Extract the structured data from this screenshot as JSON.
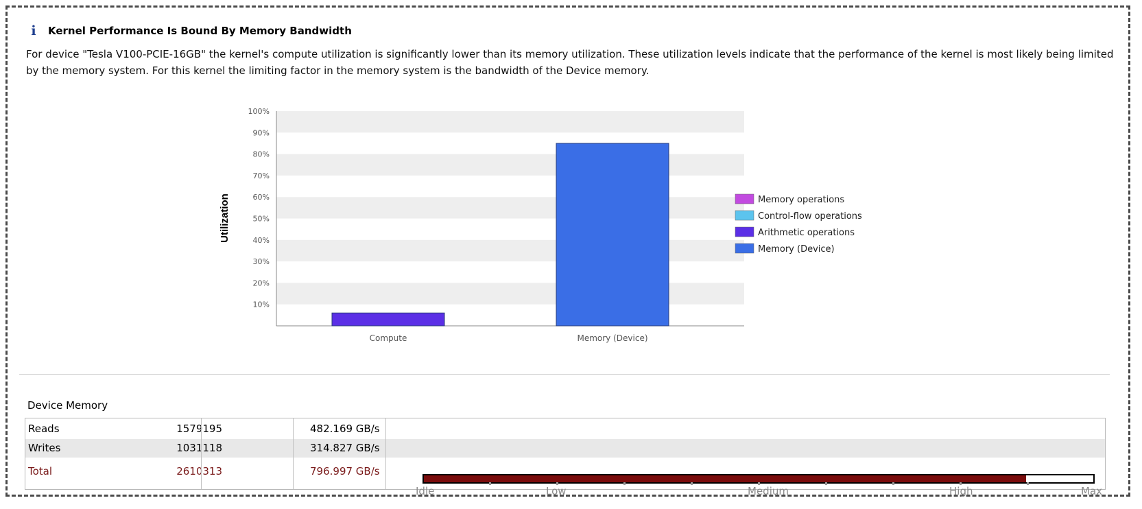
{
  "analysis": {
    "title": "Kernel Performance Is Bound By Memory Bandwidth",
    "description": "For device \"Tesla V100-PCIE-16GB\" the kernel's compute utilization is significantly lower than its memory utilization. These utilization levels indicate that the performance of the kernel is most likely being limited by the memory system. For this kernel the limiting factor in the memory system is the bandwidth of the Device memory."
  },
  "chart_data": {
    "type": "bar",
    "ylabel": "Utilization",
    "xlabel": "",
    "ylim": [
      0,
      100
    ],
    "yticks": [
      "10%",
      "20%",
      "30%",
      "40%",
      "50%",
      "60%",
      "70%",
      "80%",
      "90%",
      "100%"
    ],
    "categories": [
      "Compute",
      "Memory (Device)"
    ],
    "series": [
      {
        "name": "Memory operations",
        "color": "#c24be0",
        "values": [
          0,
          0
        ]
      },
      {
        "name": "Control-flow operations",
        "color": "#5cc4ee",
        "values": [
          0,
          0
        ]
      },
      {
        "name": "Arithmetic operations",
        "color": "#5b2fe6",
        "values": [
          6,
          0
        ]
      },
      {
        "name": "Memory (Device)",
        "color": "#3a6ee6",
        "values": [
          0,
          85
        ]
      }
    ],
    "legend": "right",
    "grid": "alternating horizontal bands"
  },
  "device_memory": {
    "title": "Device Memory",
    "rows": [
      {
        "label": "Reads",
        "count": "1579195",
        "rate": "482.169 GB/s"
      },
      {
        "label": "Writes",
        "count": "1031118",
        "rate": "314.827 GB/s"
      },
      {
        "label": "Total",
        "count": "2610313",
        "rate": "796.997 GB/s"
      }
    ],
    "utilization_level": 0.9,
    "scale_labels": [
      "Idle",
      "Low",
      "Medium",
      "High",
      "Max"
    ],
    "fill_color": "#7a0c0c"
  }
}
